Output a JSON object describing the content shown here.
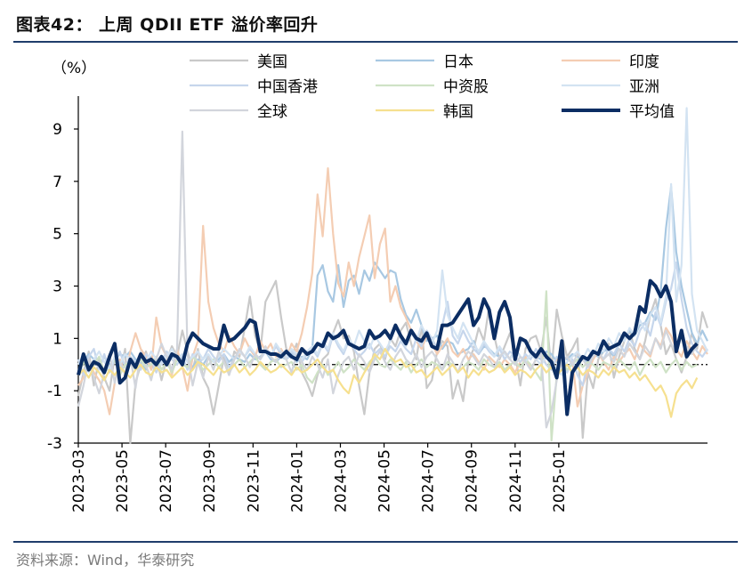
{
  "figure": {
    "title": "图表42： 上周 QDII ETF 溢价率回升",
    "source": "资料来源：Wind，华泰研究"
  },
  "chart_data": {
    "type": "line",
    "title": "上周 QDII ETF 溢价率回升",
    "ylabel": "（%）",
    "xlabel": "",
    "ylim": [
      -3,
      10
    ],
    "yticks": [
      -3,
      -1,
      1,
      3,
      5,
      7,
      9
    ],
    "xticks": [
      "2023-03",
      "2023-05",
      "2023-07",
      "2023-09",
      "2023-11",
      "2024-01",
      "2024-03",
      "2024-05",
      "2024-07",
      "2024-09",
      "2024-11",
      "2025-01"
    ],
    "x_start": "2023-03",
    "periods_per_month": 4.2,
    "zero_line": true,
    "series": [
      {
        "name": "美国",
        "color": "#c9c9c9",
        "width": 2.2,
        "values": [
          -1.2,
          -0.3,
          0.5,
          -0.8,
          0.2,
          -0.5,
          -1.0,
          0.3,
          -0.4,
          0.6,
          -3.0,
          -0.7,
          0.0,
          0.5,
          -0.2,
          0.3,
          -0.6,
          0.2,
          0.7,
          0.3,
          1.3,
          0.5,
          -0.2,
          0.6,
          -0.5,
          -0.9,
          -1.9,
          -0.8,
          0.3,
          -0.4,
          0.5,
          0.3,
          1.4,
          2.6,
          1.1,
          0.5,
          2.4,
          2.8,
          3.2,
          1.8,
          0.6,
          0.3,
          0.8,
          -0.3,
          -0.7,
          -1.2,
          -0.4,
          0.2,
          0.4,
          1.2,
          1.7,
          1.0,
          1.1,
          0.5,
          -0.8,
          -1.9,
          -0.3,
          0.6,
          0.8,
          0.2,
          1.0,
          0.7,
          1.3,
          1.6,
          0.8,
          0.2,
          1.5,
          -0.9,
          -0.6,
          0.5,
          0.9,
          0.7,
          -1.3,
          -0.6,
          -1.4,
          0.1,
          0.6,
          1.4,
          0.9,
          2.2,
          1.1,
          0.2,
          0.7,
          1.2,
          0.4,
          -0.8,
          0.6,
          1.0,
          1.1,
          0.5,
          1.8,
          -0.2,
          2.1,
          1.1,
          0.3,
          0.6,
          1.0,
          -2.8,
          -0.3,
          -0.9,
          0.2,
          0.5,
          0.8,
          -0.5,
          0.3,
          0.9,
          1.3,
          0.6,
          0.2,
          0.9,
          1.9,
          2.5,
          1.5,
          0.4,
          0.8,
          0.2,
          -0.3,
          0.3,
          1.2,
          0.6,
          2.0,
          1.4
        ]
      },
      {
        "name": "日本",
        "color": "#a8c8e2",
        "width": 2.2,
        "values": [
          -0.3,
          0.1,
          0.4,
          0.2,
          -0.1,
          0.3,
          0.0,
          0.2,
          0.4,
          0.3,
          0.5,
          0.2,
          0.1,
          -0.2,
          0.3,
          0.0,
          0.2,
          0.1,
          0.3,
          0.2,
          0.4,
          0.1,
          -0.1,
          0.2,
          0.0,
          0.3,
          0.1,
          0.2,
          0.4,
          0.1,
          0.3,
          0.2,
          0.1,
          0.4,
          0.2,
          0.3,
          0.5,
          0.2,
          0.1,
          0.3,
          0.2,
          0.4,
          0.1,
          0.3,
          0.2,
          0.6,
          3.4,
          3.8,
          2.8,
          2.4,
          3.8,
          2.2,
          3.2,
          3.4,
          2.7,
          3.6,
          3.2,
          3.9,
          3.6,
          3.3,
          3.6,
          3.5,
          2.5,
          1.9,
          1.6,
          2.1,
          1.5,
          0.9,
          1.0,
          1.1,
          0.6,
          0.9,
          0.8,
          0.4,
          0.5,
          0.6,
          0.9,
          0.4,
          0.7,
          0.6,
          0.4,
          0.3,
          0.5,
          0.2,
          0.6,
          0.3,
          0.1,
          0.4,
          0.3,
          0.2,
          0.5,
          0.4,
          0.1,
          0.3,
          0.2,
          0.4,
          0.3,
          0.2,
          0.1,
          0.4,
          0.3,
          0.5,
          0.6,
          0.3,
          0.8,
          1.0,
          1.3,
          1.1,
          1.5,
          1.6,
          2.0,
          1.7,
          2.8,
          5.2,
          6.8,
          4.3,
          3.0,
          2.1,
          1.2,
          0.8,
          1.3,
          0.9
        ]
      },
      {
        "name": "印度",
        "color": "#f4cdb3",
        "width": 2.2,
        "values": [
          -0.8,
          -0.5,
          0.1,
          -0.3,
          -0.6,
          -1.0,
          -1.9,
          -0.7,
          0.2,
          -0.4,
          0.5,
          1.2,
          0.6,
          0.3,
          -0.2,
          1.8,
          0.7,
          0.3,
          -0.4,
          0.6,
          -0.1,
          -1.0,
          0.3,
          0.9,
          5.3,
          2.4,
          1.4,
          0.8,
          0.5,
          1.1,
          0.7,
          0.4,
          1.0,
          0.6,
          0.3,
          0.9,
          0.5,
          0.8,
          0.3,
          0.6,
          0.2,
          0.8,
          0.5,
          1.2,
          2.2,
          3.5,
          6.5,
          4.9,
          7.5,
          5.0,
          3.1,
          2.6,
          3.9,
          3.0,
          4.1,
          4.9,
          5.7,
          3.3,
          4.6,
          5.2,
          2.4,
          3.0,
          2.2,
          1.8,
          1.3,
          0.9,
          0.6,
          1.1,
          0.8,
          0.4,
          0.7,
          1.0,
          0.5,
          0.3,
          0.6,
          0.2,
          0.4,
          0.1,
          -0.2,
          0.3,
          0.1,
          -0.1,
          0.2,
          0.0,
          -0.3,
          0.1,
          0.3,
          -0.2,
          0.2,
          0.4,
          0.0,
          -0.1,
          0.2,
          0.1,
          -0.3,
          0.2,
          -1.6,
          -0.8,
          -0.3,
          0.2,
          0.5,
          0.1,
          -0.2,
          0.3,
          0.1,
          0.4,
          0.6,
          0.2,
          0.8,
          0.5,
          0.3,
          1.0,
          0.7,
          1.4,
          1.1,
          0.6,
          0.3,
          0.9,
          0.5,
          0.2,
          0.7,
          0.4
        ]
      },
      {
        "name": "中国香港",
        "color": "#c6d6ec",
        "width": 2.2,
        "values": [
          0.2,
          -0.4,
          0.3,
          0.6,
          -0.2,
          0.4,
          -0.3,
          0.2,
          0.5,
          -0.1,
          0.3,
          0.1,
          -0.2,
          0.4,
          0.2,
          -0.3,
          0.1,
          0.5,
          0.2,
          0.0,
          0.3,
          -0.2,
          0.4,
          0.1,
          0.2,
          0.6,
          0.3,
          0.1,
          0.4,
          -0.1,
          0.2,
          0.5,
          0.3,
          0.6,
          0.4,
          0.2,
          0.5,
          0.3,
          0.7,
          0.4,
          0.2,
          0.5,
          0.3,
          0.1,
          0.4,
          0.6,
          0.3,
          0.8,
          0.5,
          1.1,
          0.7,
          0.4,
          0.9,
          0.6,
          0.3,
          0.5,
          0.8,
          0.4,
          0.6,
          0.3,
          0.7,
          0.5,
          0.9,
          0.6,
          0.4,
          1.0,
          0.7,
          1.3,
          1.0,
          0.6,
          1.5,
          2.4,
          1.1,
          0.8,
          1.3,
          0.9,
          0.6,
          0.4,
          0.8,
          0.5,
          0.3,
          0.6,
          0.2,
          0.5,
          0.3,
          0.1,
          0.4,
          0.2,
          0.6,
          0.3,
          0.0,
          -0.2,
          0.3,
          0.1,
          -0.3,
          0.2,
          -0.4,
          -0.8,
          0.1,
          0.3,
          0.5,
          0.2,
          0.6,
          0.4,
          0.8,
          0.5,
          1.0,
          0.7,
          1.3,
          1.6,
          1.1,
          2.0,
          1.5,
          2.4,
          2.9,
          3.9,
          2.5,
          1.4,
          0.8,
          0.5,
          0.3,
          0.6
        ]
      },
      {
        "name": "中资股",
        "color": "#cfe2c6",
        "width": 2.2,
        "values": [
          -0.4,
          0.1,
          -0.2,
          0.0,
          0.3,
          -0.3,
          -0.1,
          0.2,
          -0.4,
          0.0,
          0.1,
          -0.2,
          0.2,
          -0.1,
          0.0,
          0.3,
          -0.2,
          0.1,
          -0.3,
          0.2,
          0.0,
          -0.1,
          0.3,
          0.1,
          -0.2,
          0.0,
          0.2,
          -0.1,
          0.1,
          -0.3,
          0.0,
          0.2,
          -0.1,
          0.1,
          0.3,
          0.0,
          -0.2,
          0.1,
          0.2,
          -0.1,
          0.0,
          0.1,
          -0.2,
          0.0,
          -0.5,
          -0.7,
          -0.3,
          0.0,
          -0.4,
          -0.2,
          0.1,
          -0.3,
          -0.1,
          0.2,
          0.0,
          -0.2,
          0.1,
          0.3,
          0.0,
          -0.1,
          0.2,
          0.0,
          -0.2,
          0.1,
          -0.3,
          0.0,
          0.2,
          -0.1,
          0.1,
          0.0,
          -0.2,
          0.1,
          0.0,
          -0.3,
          -0.1,
          0.1,
          0.0,
          -0.2,
          0.2,
          0.0,
          -0.1,
          0.1,
          -0.2,
          0.0,
          0.1,
          -0.1,
          0.2,
          0.0,
          -0.3,
          -0.6,
          2.8,
          -2.9,
          -0.4,
          0.1,
          -0.2,
          0.0,
          0.2,
          -0.1,
          0.1,
          0.0,
          -0.2,
          0.1,
          0.0,
          -0.1,
          0.2,
          0.0,
          -0.2,
          0.1,
          -0.4,
          0.0,
          0.2,
          -0.1,
          0.1,
          -0.3,
          0.0,
          0.2,
          -0.2,
          0.1,
          -0.1,
          0.0
        ]
      },
      {
        "name": "亚洲",
        "color": "#d3e3f2",
        "width": 2.2,
        "values": [
          0.0,
          0.4,
          -0.3,
          0.2,
          0.5,
          0.1,
          -0.2,
          0.3,
          0.0,
          0.4,
          0.2,
          -0.1,
          0.3,
          0.1,
          0.5,
          0.2,
          0.0,
          0.3,
          0.6,
          0.2,
          0.4,
          0.1,
          0.3,
          0.5,
          0.2,
          0.4,
          0.1,
          0.3,
          0.6,
          0.4,
          0.2,
          0.5,
          0.3,
          0.7,
          0.4,
          0.2,
          0.6,
          0.3,
          0.8,
          0.5,
          0.3,
          0.6,
          0.4,
          0.2,
          0.5,
          0.7,
          0.4,
          0.9,
          0.6,
          1.2,
          0.8,
          0.5,
          1.0,
          0.7,
          1.3,
          0.9,
          0.6,
          1.1,
          0.8,
          0.5,
          0.9,
          1.4,
          1.0,
          0.7,
          1.2,
          0.9,
          1.5,
          1.1,
          0.8,
          1.3,
          3.6,
          1.9,
          1.4,
          1.0,
          1.6,
          1.2,
          0.8,
          0.5,
          0.9,
          0.6,
          0.3,
          0.7,
          0.4,
          0.2,
          0.5,
          0.3,
          0.1,
          0.4,
          0.2,
          0.0,
          0.3,
          0.1,
          -0.2,
          -0.4,
          0.1,
          0.3,
          0.5,
          0.2,
          0.6,
          0.3,
          0.8,
          0.5,
          1.0,
          0.7,
          1.2,
          0.9,
          1.4,
          1.1,
          1.7,
          1.3,
          1.9,
          2.2,
          1.6,
          2.6,
          6.9,
          2.4,
          3.8,
          9.8,
          2.7,
          1.3,
          0.9,
          0.5
        ]
      },
      {
        "name": "全球",
        "color": "#d2d5dc",
        "width": 2.2,
        "values": [
          -1.6,
          -0.8,
          0.2,
          -0.5,
          -1.1,
          -0.3,
          0.4,
          -0.7,
          0.1,
          -0.4,
          0.3,
          -0.9,
          0.5,
          0.0,
          -0.6,
          0.2,
          0.8,
          0.3,
          -0.2,
          0.6,
          8.9,
          0.4,
          -0.8,
          0.1,
          -0.5,
          0.3,
          -0.2,
          0.5,
          0.1,
          -0.4,
          0.2,
          0.6,
          0.3,
          -0.1,
          0.4,
          0.2,
          0.7,
          0.3,
          0.1,
          0.5,
          0.2,
          -0.3,
          0.4,
          0.1,
          -0.2,
          0.3,
          0.0,
          -0.5,
          0.2,
          -1.1,
          -0.4,
          0.1,
          0.3,
          -0.2,
          0.4,
          0.1,
          -0.3,
          0.2,
          0.5,
          0.1,
          -0.2,
          0.3,
          0.6,
          0.2,
          0.0,
          0.4,
          -0.1,
          0.3,
          0.5,
          0.2,
          -0.2,
          0.4,
          0.1,
          -0.3,
          0.2,
          0.5,
          0.3,
          0.0,
          0.4,
          0.2,
          -0.1,
          0.3,
          0.5,
          0.2,
          0.0,
          0.3,
          0.1,
          -0.2,
          0.2,
          0.4,
          -2.4,
          -1.8,
          -0.6,
          0.1,
          0.3,
          0.0,
          0.4,
          0.2,
          -0.1,
          0.3,
          0.5,
          0.2,
          0.4,
          0.1,
          0.6,
          0.3,
          0.8,
          0.5,
          0.2,
          0.7,
          0.4,
          1.0,
          0.6,
          1.3,
          0.8,
          0.5,
          1.1,
          0.7,
          0.4,
          0.8
        ]
      },
      {
        "name": "韩国",
        "color": "#f6e08f",
        "width": 2.2,
        "values": [
          -0.4,
          -0.2,
          -0.5,
          -0.1,
          -0.3,
          -0.6,
          -0.2,
          -0.4,
          -0.1,
          -0.3,
          -0.5,
          -0.2,
          0.0,
          -0.3,
          -0.4,
          -0.1,
          -0.3,
          -0.2,
          -0.5,
          -0.3,
          -0.1,
          -0.4,
          -0.2,
          0.1,
          0.0,
          -0.2,
          -0.4,
          -0.1,
          -0.3,
          -0.2,
          0.0,
          -0.3,
          -0.1,
          -0.4,
          -0.2,
          0.1,
          -0.1,
          -0.3,
          -0.2,
          0.0,
          -0.2,
          -0.4,
          -0.1,
          -0.3,
          -0.2,
          0.0,
          0.2,
          -0.1,
          -0.3,
          -0.2,
          -0.6,
          -0.9,
          -1.1,
          -0.4,
          -0.7,
          -0.3,
          0.0,
          0.4,
          0.2,
          0.6,
          0.3,
          0.1,
          0.2,
          -0.1,
          0.0,
          -0.3,
          -0.2,
          -0.5,
          -0.3,
          -0.1,
          -0.4,
          -0.2,
          0.0,
          -0.3,
          -0.1,
          -0.5,
          -0.2,
          -0.4,
          -0.1,
          -0.3,
          -0.2,
          0.0,
          -0.3,
          -0.1,
          -0.4,
          -0.2,
          -0.3,
          -0.5,
          -0.2,
          0.0,
          -0.3,
          -0.1,
          -0.4,
          -0.2,
          0.0,
          -0.3,
          -0.1,
          -0.4,
          -0.2,
          -0.3,
          -0.5,
          -0.2,
          -0.4,
          -0.1,
          -0.3,
          -0.2,
          -0.5,
          -0.3,
          -0.6,
          -0.4,
          -0.7,
          -1.0,
          -0.8,
          -1.2,
          -2.0,
          -1.1,
          -0.8,
          -0.6,
          -0.9,
          -0.5
        ]
      },
      {
        "name": "平均值",
        "color": "#0b2d63",
        "width": 4,
        "values": [
          -0.4,
          0.4,
          -0.2,
          0.1,
          0.0,
          -0.3,
          0.3,
          0.8,
          -0.7,
          -0.5,
          0.2,
          -0.1,
          0.4,
          0.1,
          0.2,
          0.0,
          0.3,
          0.0,
          0.4,
          0.3,
          0.0,
          0.8,
          1.2,
          1.0,
          0.8,
          0.7,
          0.6,
          0.6,
          1.5,
          0.9,
          1.0,
          1.2,
          1.4,
          1.7,
          1.6,
          0.5,
          0.5,
          0.4,
          0.4,
          0.3,
          0.5,
          0.3,
          0.2,
          0.6,
          0.4,
          0.5,
          0.8,
          0.7,
          1.2,
          1.0,
          1.1,
          1.3,
          0.8,
          0.7,
          0.6,
          0.7,
          1.3,
          1.0,
          1.1,
          1.3,
          1.0,
          1.5,
          1.1,
          0.8,
          1.3,
          1.0,
          0.9,
          1.2,
          0.7,
          0.6,
          1.5,
          1.5,
          1.6,
          1.9,
          2.2,
          2.5,
          1.5,
          1.8,
          2.5,
          2.1,
          1.0,
          2.0,
          2.4,
          1.8,
          0.2,
          1.0,
          0.9,
          0.5,
          0.3,
          0.6,
          0.3,
          0.1,
          -0.5,
          0.9,
          -1.9,
          -0.3,
          0.0,
          0.3,
          0.2,
          0.5,
          0.4,
          0.9,
          0.6,
          0.7,
          0.8,
          1.2,
          1.0,
          1.2,
          2.2,
          2.0,
          3.2,
          3.0,
          2.6,
          3.0,
          2.4,
          0.5,
          1.3,
          0.3,
          0.6,
          0.8
        ]
      }
    ]
  }
}
